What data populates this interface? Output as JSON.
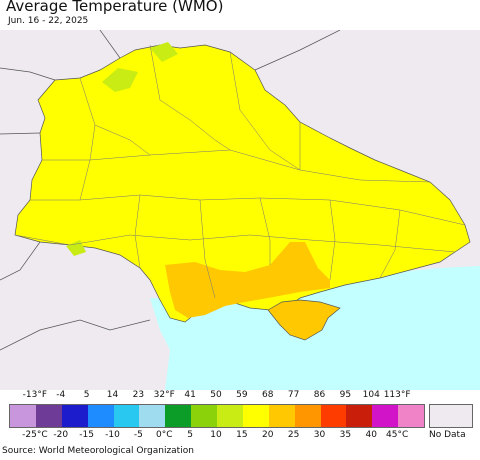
{
  "header": {
    "title": "Average Temperature (WMO)",
    "date_range": "Jun. 16 - 22, 2025"
  },
  "legend": {
    "fahrenheit_ticks": [
      "-13°F",
      "-4",
      "5",
      "14",
      "23",
      "32°F",
      "41",
      "50",
      "59",
      "68",
      "77",
      "86",
      "95",
      "104",
      "113°F"
    ],
    "celsius_ticks": [
      "-25°C",
      "-20",
      "-15",
      "-10",
      "-5",
      "0°C",
      "5",
      "10",
      "15",
      "20",
      "25",
      "30",
      "35",
      "40",
      "45°C"
    ],
    "colors": [
      "#c896dc",
      "#6e3c96",
      "#1c1ccc",
      "#1e8cff",
      "#28c8f0",
      "#a0dcf0",
      "#0c9c28",
      "#8cd20a",
      "#c8ec14",
      "#ffff00",
      "#ffc800",
      "#ff9600",
      "#ff3c00",
      "#c81e0a",
      "#d214c8",
      "#f082c8"
    ],
    "no_data_label": "No Data",
    "no_data_color": "#eeeaef"
  },
  "map": {
    "sea_color": "#c4ffff",
    "land_nodata_color": "#eeeaef",
    "dominant_color": "#ffff00",
    "warm_color": "#ffc800",
    "cool_color": "#c8ec14"
  },
  "footer": {
    "source": "Source: World Meteorological Organization"
  }
}
